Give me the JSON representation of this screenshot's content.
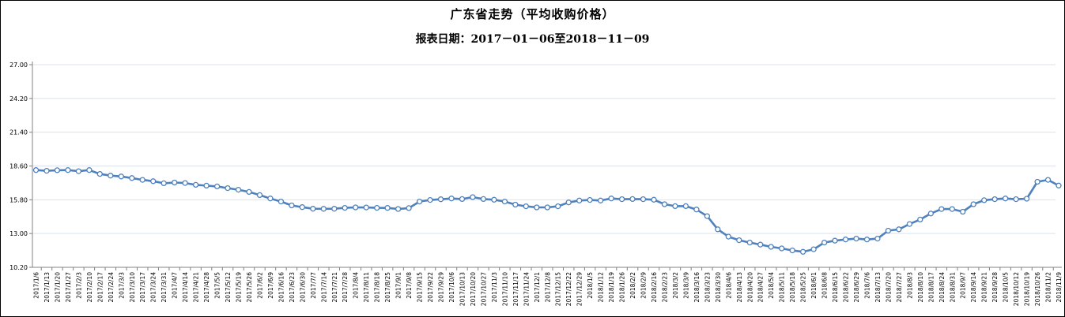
{
  "header": {
    "title": "广东省走势（平均收购价格）",
    "subtitle": "报表日期：2017－01－06至2018－11－09"
  },
  "colors": {
    "line": "#4f81bd",
    "marker_fill": "#ffffff",
    "grid": "#dbe2ee",
    "axis": "#808080",
    "text": "#000000",
    "border": "#000000"
  },
  "chart_data": {
    "type": "line",
    "title": "广东省走势（平均收购价格）",
    "subtitle": "报表日期：2017－01－06至2018－11－09",
    "xlabel": "",
    "ylabel": "",
    "ylim": [
      10.2,
      27.0
    ],
    "yticks": [
      10.2,
      13.0,
      15.8,
      18.6,
      21.4,
      24.2,
      27.0
    ],
    "grid": true,
    "legend_position": "none",
    "marker": "open-circle",
    "x": [
      "2017/1/6",
      "2017/1/13",
      "2017/1/20",
      "2017/1/27",
      "2017/2/3",
      "2017/2/10",
      "2017/2/17",
      "2017/2/24",
      "2017/3/3",
      "2017/3/10",
      "2017/3/17",
      "2017/3/24",
      "2017/3/31",
      "2017/4/7",
      "2017/4/14",
      "2017/4/21",
      "2017/4/28",
      "2017/5/5",
      "2017/5/12",
      "2017/5/19",
      "2017/5/26",
      "2017/6/2",
      "2017/6/9",
      "2017/6/16",
      "2017/6/23",
      "2017/6/30",
      "2017/7/7",
      "2017/7/14",
      "2017/7/21",
      "2017/7/28",
      "2017/8/4",
      "2017/8/11",
      "2017/8/18",
      "2017/8/25",
      "2017/9/1",
      "2017/9/8",
      "2017/9/15",
      "2017/9/22",
      "2017/9/29",
      "2017/10/6",
      "2017/10/13",
      "2017/10/20",
      "2017/10/27",
      "2017/11/3",
      "2017/11/10",
      "2017/11/17",
      "2017/11/24",
      "2017/12/1",
      "2017/12/8",
      "2017/12/15",
      "2017/12/22",
      "2017/12/29",
      "2018/1/5",
      "2018/1/12",
      "2018/1/19",
      "2018/1/26",
      "2018/2/2",
      "2018/2/9",
      "2018/2/16",
      "2018/2/23",
      "2018/3/2",
      "2018/3/9",
      "2018/3/16",
      "2018/3/23",
      "2018/3/30",
      "2018/4/6",
      "2018/4/13",
      "2018/4/20",
      "2018/4/27",
      "2018/5/4",
      "2018/5/11",
      "2018/5/18",
      "2018/5/25",
      "2018/6/1",
      "2018/6/8",
      "2018/6/15",
      "2018/6/22",
      "2018/6/29",
      "2018/7/6",
      "2018/7/13",
      "2018/7/20",
      "2018/7/27",
      "2018/8/3",
      "2018/8/10",
      "2018/8/17",
      "2018/8/24",
      "2018/8/31",
      "2018/9/7",
      "2018/9/14",
      "2018/9/21",
      "2018/9/28",
      "2018/10/5",
      "2018/10/12",
      "2018/10/19",
      "2018/10/26",
      "2018/11/2",
      "2018/11/9"
    ],
    "series": [
      {
        "name": "平均收购价格",
        "values": [
          18.26,
          18.2,
          18.25,
          18.26,
          18.17,
          18.26,
          17.94,
          17.8,
          17.73,
          17.6,
          17.45,
          17.34,
          17.17,
          17.23,
          17.19,
          17.04,
          16.97,
          16.91,
          16.76,
          16.63,
          16.45,
          16.19,
          15.91,
          15.65,
          15.33,
          15.19,
          15.06,
          15.05,
          15.06,
          15.13,
          15.17,
          15.16,
          15.13,
          15.12,
          15.04,
          15.11,
          15.65,
          15.78,
          15.84,
          15.91,
          15.86,
          16.02,
          15.86,
          15.8,
          15.65,
          15.4,
          15.26,
          15.17,
          15.17,
          15.26,
          15.58,
          15.74,
          15.78,
          15.74,
          15.91,
          15.85,
          15.86,
          15.85,
          15.8,
          15.43,
          15.27,
          15.27,
          14.99,
          14.44,
          13.35,
          12.74,
          12.45,
          12.25,
          12.08,
          11.9,
          11.77,
          11.6,
          11.49,
          11.7,
          12.25,
          12.41,
          12.51,
          12.58,
          12.51,
          12.58,
          13.24,
          13.35,
          13.79,
          14.16,
          14.66,
          15.03,
          15.03,
          14.81,
          15.43,
          15.76,
          15.85,
          15.91,
          15.85,
          15.89,
          17.29,
          17.45,
          16.98
        ]
      }
    ]
  }
}
